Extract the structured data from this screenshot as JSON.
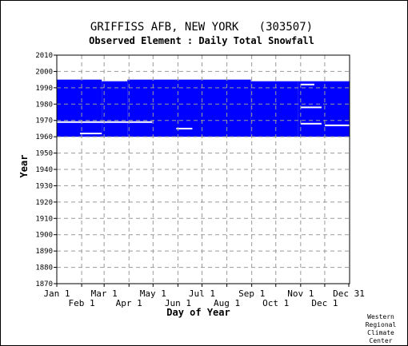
{
  "chart_data": {
    "type": "bar",
    "title": "GRIFFISS AFB, NEW YORK   (303507)",
    "subtitle": "Observed Element : Daily Total Snowfall",
    "xlabel": "Day of Year",
    "ylabel": "Year",
    "ylim": [
      1870,
      2010
    ],
    "xlim": [
      1,
      366
    ],
    "yticks": [
      1870,
      1880,
      1890,
      1900,
      1910,
      1920,
      1930,
      1940,
      1950,
      1960,
      1970,
      1980,
      1990,
      2000,
      2010
    ],
    "xticks_top": [
      {
        "label": "Jan 1",
        "day": 1
      },
      {
        "label": "Mar 1",
        "day": 60
      },
      {
        "label": "May 1",
        "day": 121
      },
      {
        "label": "Jul 1",
        "day": 182
      },
      {
        "label": "Sep 1",
        "day": 244
      },
      {
        "label": "Nov 1",
        "day": 305
      },
      {
        "label": "Dec 31",
        "day": 365
      }
    ],
    "xticks_bottom": [
      {
        "label": "Feb 1",
        "day": 32
      },
      {
        "label": "Apr 1",
        "day": 91
      },
      {
        "label": "Jun 1",
        "day": 152
      },
      {
        "label": "Aug 1",
        "day": 213
      },
      {
        "label": "Oct 1",
        "day": 274
      },
      {
        "label": "Dec 1",
        "day": 335
      }
    ],
    "grid": true,
    "series_color": "#0000ff",
    "data_coverage": [
      {
        "day_start": 1,
        "day_end": 57,
        "year_start": 1960,
        "year_end": 1995
      },
      {
        "day_start": 57,
        "day_end": 89,
        "year_start": 1960,
        "year_end": 1994
      },
      {
        "day_start": 89,
        "day_end": 243,
        "year_start": 1960,
        "year_end": 1995
      },
      {
        "day_start": 243,
        "day_end": 302,
        "year_start": 1960,
        "year_end": 1994
      },
      {
        "day_start": 302,
        "day_end": 366,
        "year_start": 1960,
        "year_end": 1994
      }
    ],
    "missing_data": [
      {
        "day_start": 1,
        "day_end": 120,
        "year": 1969
      },
      {
        "day_start": 30,
        "day_end": 57,
        "year": 1962
      },
      {
        "day_start": 150,
        "day_end": 170,
        "year": 1965
      },
      {
        "day_start": 305,
        "day_end": 331,
        "year": 1978
      },
      {
        "day_start": 305,
        "day_end": 331,
        "year": 1968
      },
      {
        "day_start": 305,
        "day_end": 322,
        "year": 1992
      },
      {
        "day_start": 335,
        "day_end": 366,
        "year": 1967
      }
    ]
  },
  "credit": [
    "Western",
    "Regional",
    "Climate",
    "Center"
  ]
}
